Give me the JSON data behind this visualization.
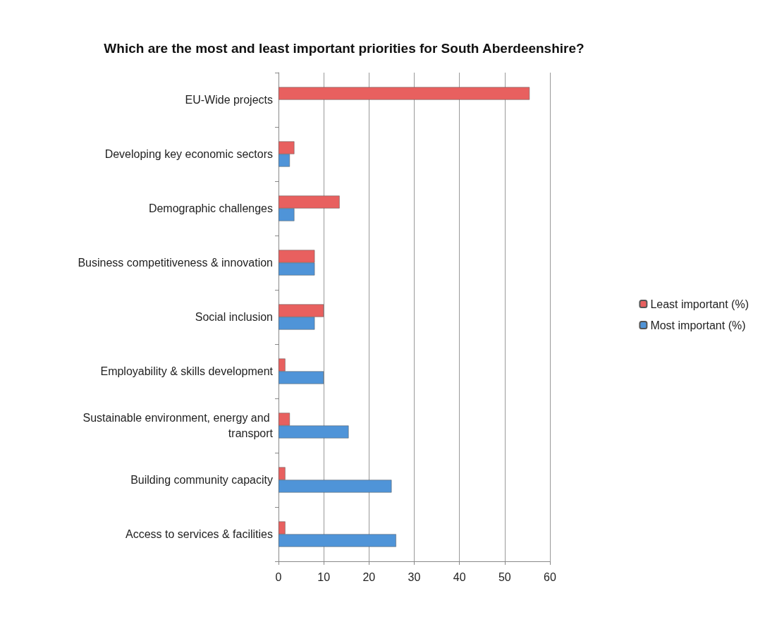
{
  "chart_data": {
    "type": "bar",
    "orientation": "horizontal",
    "title": "Which are the most and least important priorities for South Aberdeenshire?",
    "categories": [
      "EU-Wide projects",
      "Developing key economic sectors",
      "Demographic challenges",
      "Business competitiveness & innovation",
      "Social inclusion",
      "Employability & skills development",
      "Sustainable environment, energy and transport",
      "Building community capacity",
      "Access to services & facilities"
    ],
    "series": [
      {
        "name": "Least important (%)",
        "color": "#e8605f",
        "values": [
          55.5,
          3.5,
          13.5,
          8,
          10,
          1.5,
          2.5,
          1.5,
          1.5
        ]
      },
      {
        "name": "Most important (%)",
        "color": "#4f94d8",
        "values": [
          null,
          2.5,
          3.5,
          8,
          8,
          10,
          15.5,
          25,
          26
        ]
      }
    ],
    "xlim": [
      0,
      60
    ],
    "xticks": [
      0,
      10,
      20,
      30,
      40,
      50,
      60
    ],
    "grid": "x",
    "legend": "right"
  }
}
